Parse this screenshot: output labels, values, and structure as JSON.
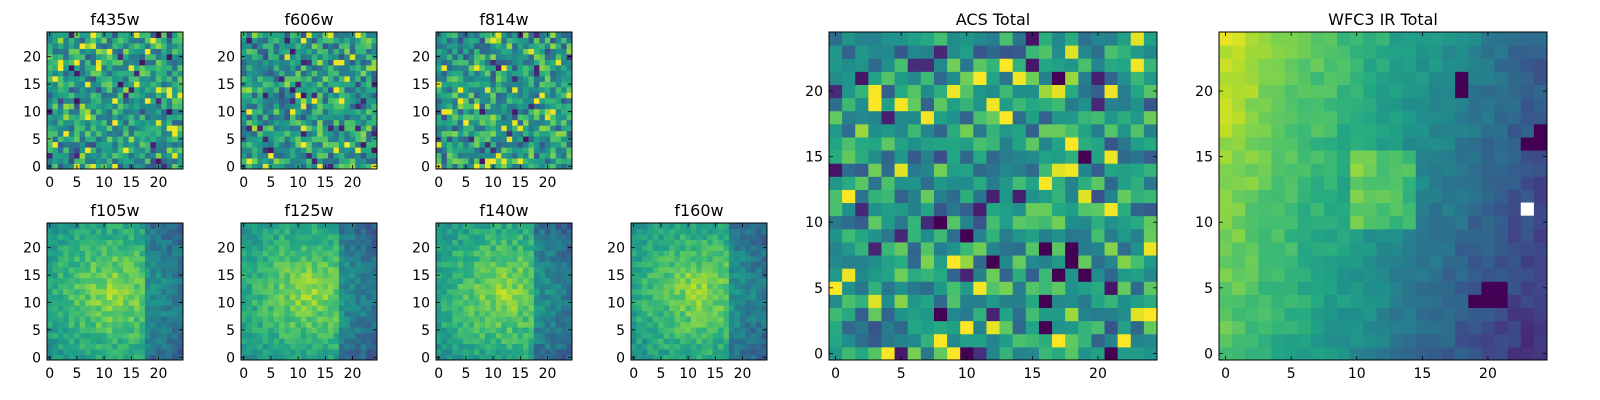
{
  "colormap": "viridis",
  "colors": {
    "frame": "#000000",
    "background": "#ffffff",
    "missing": "#ffffff"
  },
  "chart_data": [
    {
      "type": "heatmap",
      "title": "f435w",
      "x_ticks": [
        "0",
        "5",
        "10",
        "15",
        "20"
      ],
      "y_ticks": [
        "0",
        "5",
        "10",
        "15",
        "20"
      ],
      "grid_size": [
        25,
        25
      ],
      "xlim": [
        -0.5,
        24.5
      ],
      "ylim": [
        -0.5,
        24.5
      ],
      "pixels": "uniform noise, mostly green-yellow with scattered dark purple pixels (values not recoverable from screenshot)"
    },
    {
      "type": "heatmap",
      "title": "f606w",
      "x_ticks": [
        "0",
        "5",
        "10",
        "15",
        "20"
      ],
      "y_ticks": [
        "0",
        "5",
        "10",
        "15",
        "20"
      ],
      "grid_size": [
        25,
        25
      ],
      "xlim": [
        -0.5,
        24.5
      ],
      "ylim": [
        -0.5,
        24.5
      ],
      "pixels": "uniform noise, slight yellow concentration near center"
    },
    {
      "type": "heatmap",
      "title": "f814w",
      "x_ticks": [
        "0",
        "5",
        "10",
        "15",
        "20"
      ],
      "y_ticks": [
        "0",
        "5",
        "10",
        "15",
        "20"
      ],
      "grid_size": [
        25,
        25
      ],
      "xlim": [
        -0.5,
        24.5
      ],
      "ylim": [
        -0.5,
        24.5
      ],
      "pixels": "uniform noise, green-yellow"
    },
    {
      "type": "heatmap",
      "title": "f105w",
      "x_ticks": [
        "0",
        "5",
        "10",
        "15",
        "20"
      ],
      "y_ticks": [
        "0",
        "5",
        "10",
        "15",
        "20"
      ],
      "grid_size": [
        25,
        25
      ],
      "xlim": [
        -0.5,
        24.5
      ],
      "ylim": [
        -0.5,
        24.5
      ],
      "pixels": "smooth, yellow center, dark purple patch near x=20,y=4"
    },
    {
      "type": "heatmap",
      "title": "f125w",
      "x_ticks": [
        "0",
        "5",
        "10",
        "15",
        "20"
      ],
      "y_ticks": [
        "0",
        "5",
        "10",
        "15",
        "20"
      ],
      "grid_size": [
        25,
        25
      ],
      "xlim": [
        -0.5,
        24.5
      ],
      "ylim": [
        -0.5,
        24.5
      ],
      "pixels": "smooth, yellow-green, dark patch near x=22,y=11"
    },
    {
      "type": "heatmap",
      "title": "f140w",
      "x_ticks": [
        "0",
        "5",
        "10",
        "15",
        "20"
      ],
      "y_ticks": [
        "0",
        "5",
        "10",
        "15",
        "20"
      ],
      "grid_size": [
        25,
        25
      ],
      "xlim": [
        -0.5,
        24.5
      ],
      "ylim": [
        -0.5,
        24.5
      ],
      "pixels": "smooth, teal lower-right, dark pixels near right edge"
    },
    {
      "type": "heatmap",
      "title": "f160w",
      "x_ticks": [
        "0",
        "5",
        "10",
        "15",
        "20"
      ],
      "y_ticks": [
        "0",
        "5",
        "10",
        "15",
        "20"
      ],
      "grid_size": [
        25,
        25
      ],
      "xlim": [
        -0.5,
        24.5
      ],
      "ylim": [
        -0.5,
        24.5
      ],
      "pixels": "smooth, yellow left, teal right, dark pixels near x=19-24"
    },
    {
      "type": "heatmap",
      "title": "ACS Total",
      "x_ticks": [
        "0",
        "5",
        "10",
        "15",
        "20"
      ],
      "y_ticks": [
        "0",
        "5",
        "10",
        "15",
        "20"
      ],
      "grid_size": [
        25,
        25
      ],
      "xlim": [
        -0.5,
        24.5
      ],
      "ylim": [
        -0.5,
        24.5
      ],
      "pixels": "noisy green field with scattered dark purple and bright yellow pixels",
      "dark_pixels": [
        [
          17,
          21
        ],
        [
          19,
          15
        ],
        [
          8,
          10
        ],
        [
          10,
          9
        ],
        [
          16,
          8
        ],
        [
          18,
          8
        ],
        [
          18,
          7
        ],
        [
          17,
          6
        ],
        [
          19,
          6
        ],
        [
          16,
          4
        ],
        [
          8,
          3
        ],
        [
          16,
          2
        ],
        [
          10,
          0
        ],
        [
          21,
          0
        ],
        [
          12,
          7
        ]
      ],
      "bright_pixels": [
        [
          4,
          0
        ],
        [
          10,
          2
        ],
        [
          8,
          1
        ],
        [
          17,
          1
        ],
        [
          22,
          1
        ],
        [
          3,
          19
        ],
        [
          11,
          21
        ],
        [
          13,
          18
        ],
        [
          1,
          12
        ],
        [
          18,
          16
        ],
        [
          24,
          3
        ]
      ]
    },
    {
      "type": "heatmap",
      "title": "WFC3 IR Total",
      "x_ticks": [
        "0",
        "5",
        "10",
        "15",
        "20"
      ],
      "y_ticks": [
        "0",
        "5",
        "10",
        "15",
        "20"
      ],
      "grid_size": [
        25,
        25
      ],
      "xlim": [
        -0.5,
        24.5
      ],
      "ylim": [
        -0.5,
        24.5
      ],
      "pixels": "smooth gradient: yellow upper-left, yellow blob near center (x=10-14,y=10-15), teal on right side, dark purple blob near x=20-21,y=4-5, white (masked) pixel at x=23,y=11",
      "dark_pixels": [
        [
          19,
          4
        ],
        [
          20,
          4
        ],
        [
          21,
          4
        ],
        [
          20,
          5
        ],
        [
          21,
          5
        ],
        [
          23,
          16
        ],
        [
          24,
          16
        ],
        [
          24,
          17
        ],
        [
          18,
          20
        ],
        [
          18,
          21
        ]
      ],
      "masked_pixels": [
        [
          23,
          11
        ]
      ]
    }
  ]
}
